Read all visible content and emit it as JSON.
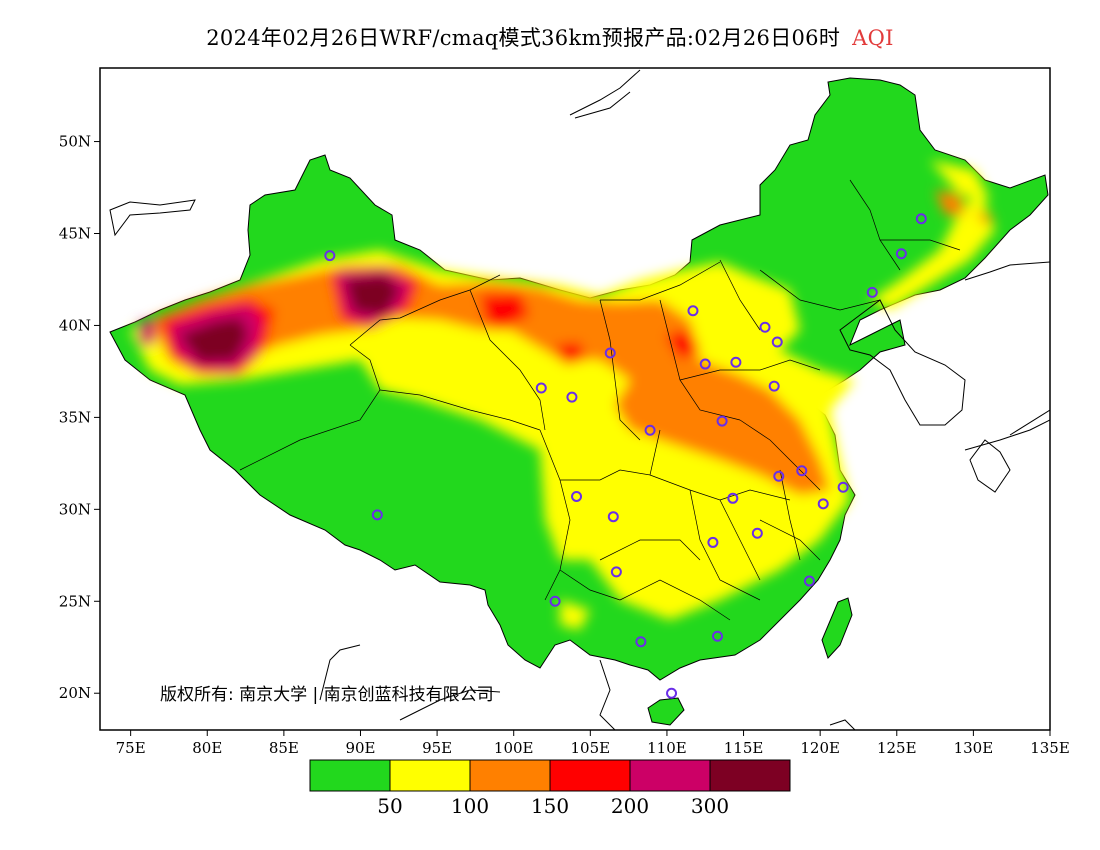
{
  "title": {
    "text": "2024年02月26日WRF/cmaq模式36km预报产品:02月26日06时",
    "variable": "AQI",
    "variable_color": "#e23b3b"
  },
  "map": {
    "lon_range": [
      73,
      135
    ],
    "lat_range": [
      18,
      54
    ],
    "lon_ticks": [
      "75E",
      "80E",
      "85E",
      "90E",
      "95E",
      "100E",
      "105E",
      "110E",
      "115E",
      "120E",
      "125E",
      "130E",
      "135E"
    ],
    "lat_ticks": [
      "20N",
      "25N",
      "30N",
      "35N",
      "40N",
      "45N",
      "50N"
    ],
    "copyright": "版权所有: 南京大学 | 南京创蓝科技有限公司"
  },
  "legend": {
    "colors": [
      "#22d81d",
      "#ffff00",
      "#ff8000",
      "#ff0000",
      "#cc0066",
      "#7d0023"
    ],
    "labels": [
      "50",
      "100",
      "150",
      "200",
      "300"
    ]
  },
  "stations": [
    [
      88,
      43.8
    ],
    [
      117.2,
      39.1
    ],
    [
      116.4,
      39.9
    ],
    [
      125.3,
      43.9
    ],
    [
      123.4,
      41.8
    ],
    [
      126.6,
      45.8
    ],
    [
      113.6,
      34.8
    ],
    [
      111.7,
      40.8
    ],
    [
      114.5,
      38.0
    ],
    [
      112.5,
      37.9
    ],
    [
      108.9,
      34.3
    ],
    [
      106.3,
      38.5
    ],
    [
      103.8,
      36.1
    ],
    [
      101.8,
      36.6
    ],
    [
      104.1,
      30.7
    ],
    [
      106.5,
      29.6
    ],
    [
      106.7,
      26.6
    ],
    [
      102.7,
      25.0
    ],
    [
      108.3,
      22.8
    ],
    [
      113.3,
      23.1
    ],
    [
      110.3,
      20.0
    ],
    [
      113.0,
      28.2
    ],
    [
      114.3,
      30.6
    ],
    [
      115.9,
      28.7
    ],
    [
      117.3,
      31.8
    ],
    [
      118.8,
      32.1
    ],
    [
      120.2,
      30.3
    ],
    [
      121.5,
      31.2
    ],
    [
      119.3,
      26.1
    ],
    [
      117.0,
      36.7
    ],
    [
      91.1,
      29.7
    ]
  ]
}
